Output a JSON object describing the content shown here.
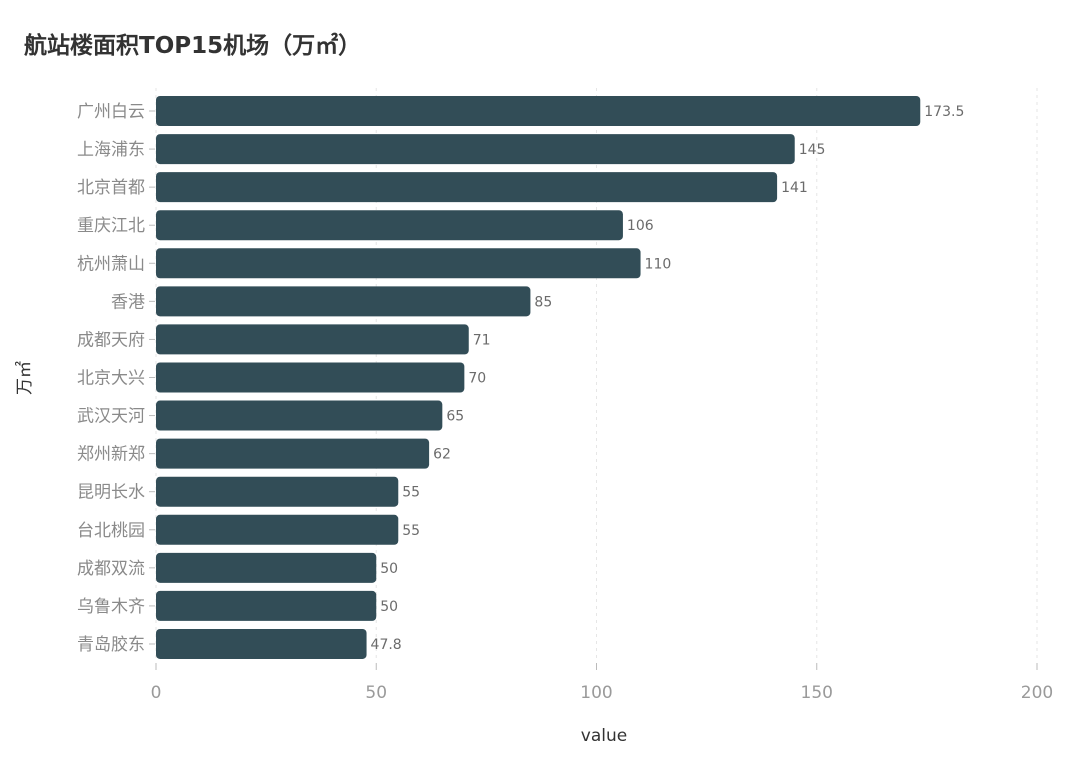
{
  "chart_data": {
    "type": "bar",
    "orientation": "horizontal",
    "title": "航站楼面积TOP15机场（万㎡）",
    "xlabel": "value",
    "ylabel": "万㎡",
    "xlim": [
      0,
      200
    ],
    "xticks": [
      0,
      50,
      100,
      150,
      200
    ],
    "grid": true,
    "categories": [
      "广州白云",
      "上海浦东",
      "北京首都",
      "重庆江北",
      "杭州萧山",
      "香港",
      "成都天府",
      "北京大兴",
      "武汉天河",
      "郑州新郑",
      "昆明长水",
      "台北桃园",
      "成都双流",
      "乌鲁木齐",
      "青岛胶东"
    ],
    "values": [
      173.5,
      145,
      141,
      106,
      110,
      85,
      71,
      70,
      65,
      62,
      55,
      55,
      50,
      50,
      47.8
    ],
    "value_labels": [
      "173.5",
      "145",
      "141",
      "106",
      "110",
      "85",
      "71",
      "70",
      "65",
      "62",
      "55",
      "55",
      "50",
      "50",
      "47.8"
    ],
    "bar_color": "#324d57"
  }
}
